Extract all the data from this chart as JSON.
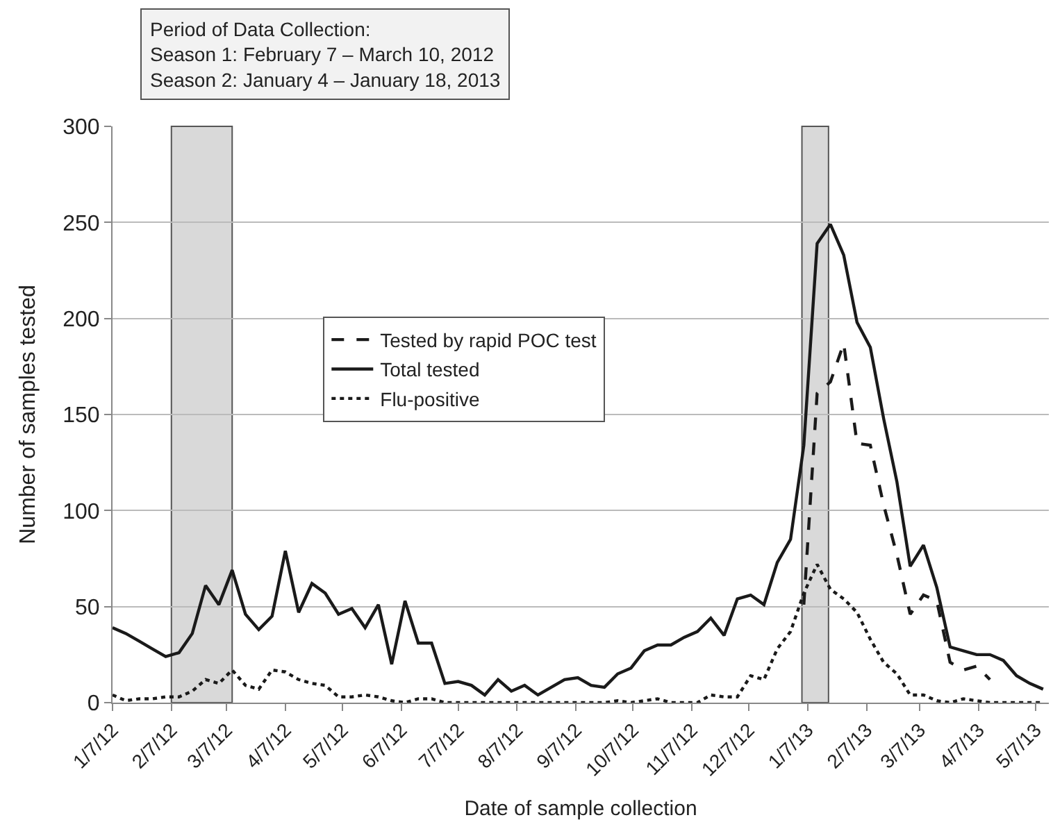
{
  "chart_data": {
    "type": "line",
    "xlabel": "Date of sample collection",
    "ylabel": "Number of samples tested",
    "annotations": [
      "Period of Data Collection:\nSeason 1: February 7 – March 10, 2012\nSeason 2: January 4 – January 18, 2013"
    ],
    "x": [
      "2012-01-07",
      "2012-01-14",
      "2012-01-21",
      "2012-01-28",
      "2012-02-04",
      "2012-02-11",
      "2012-02-18",
      "2012-02-25",
      "2012-03-03",
      "2012-03-10",
      "2012-03-17",
      "2012-03-24",
      "2012-03-31",
      "2012-04-07",
      "2012-04-14",
      "2012-04-21",
      "2012-04-28",
      "2012-05-05",
      "2012-05-12",
      "2012-05-19",
      "2012-05-26",
      "2012-06-02",
      "2012-06-09",
      "2012-06-16",
      "2012-06-23",
      "2012-06-30",
      "2012-07-07",
      "2012-07-14",
      "2012-07-21",
      "2012-07-28",
      "2012-08-04",
      "2012-08-11",
      "2012-08-18",
      "2012-08-25",
      "2012-09-01",
      "2012-09-08",
      "2012-09-15",
      "2012-09-22",
      "2012-09-29",
      "2012-10-06",
      "2012-10-13",
      "2012-10-20",
      "2012-10-27",
      "2012-11-03",
      "2012-11-10",
      "2012-11-17",
      "2012-11-24",
      "2012-12-01",
      "2012-12-08",
      "2012-12-15",
      "2012-12-22",
      "2012-12-29",
      "2013-01-05",
      "2013-01-12",
      "2013-01-19",
      "2013-01-26",
      "2013-02-02",
      "2013-02-09",
      "2013-02-16",
      "2013-02-23",
      "2013-03-02",
      "2013-03-09",
      "2013-03-16",
      "2013-03-23",
      "2013-03-30",
      "2013-04-06",
      "2013-04-13",
      "2013-04-20",
      "2013-04-27",
      "2013-05-04",
      "2013-05-11"
    ],
    "series": [
      {
        "name": "Tested by rapid POC test",
        "color": "#1a1a1a",
        "line_style": "dashed",
        "x": [
          "2013-01-05",
          "2013-01-12",
          "2013-01-19",
          "2013-01-26",
          "2013-02-02",
          "2013-02-09",
          "2013-02-16",
          "2013-02-23",
          "2013-03-02",
          "2013-03-09",
          "2013-03-16",
          "2013-03-23",
          "2013-03-30",
          "2013-04-06",
          "2013-04-13"
        ],
        "values": [
          51,
          161,
          167,
          187,
          135,
          134,
          103,
          77,
          46,
          56,
          53,
          21,
          17,
          19,
          12
        ]
      },
      {
        "name": "Total tested",
        "color": "#1a1a1a",
        "line_style": "solid",
        "values": [
          39,
          36,
          32,
          28,
          24,
          26,
          36,
          61,
          51,
          69,
          46,
          38,
          45,
          79,
          47,
          62,
          57,
          46,
          49,
          39,
          51,
          20,
          53,
          31,
          31,
          10,
          11,
          9,
          4,
          12,
          6,
          9,
          4,
          8,
          12,
          13,
          9,
          8,
          15,
          18,
          27,
          30,
          30,
          34,
          37,
          44,
          35,
          54,
          56,
          51,
          73,
          85,
          134,
          239,
          249,
          233,
          198,
          185,
          148,
          115,
          71,
          82,
          60,
          29,
          27,
          25,
          25,
          22,
          14,
          10,
          7
        ]
      },
      {
        "name": "Flu-positive",
        "color": "#1a1a1a",
        "line_style": "dotted",
        "values": [
          4,
          1,
          2,
          2,
          3,
          3,
          6,
          12,
          10,
          17,
          9,
          7,
          17,
          16,
          12,
          10,
          9,
          3,
          3,
          4,
          3,
          1,
          0,
          2,
          2,
          0,
          0,
          0,
          0,
          0,
          0,
          0,
          0,
          0,
          0,
          0,
          0,
          0,
          1,
          0,
          1,
          2,
          0,
          0,
          0,
          4,
          3,
          3,
          14,
          12,
          28,
          37,
          57,
          72,
          59,
          54,
          47,
          33,
          21,
          15,
          4,
          4,
          1,
          0,
          2,
          1,
          0,
          0,
          0,
          0,
          0
        ]
      }
    ],
    "bands": [
      {
        "axis": "x",
        "from": "2012-02-07",
        "to": "2012-03-10",
        "color": "#d9d9d9"
      },
      {
        "axis": "x",
        "from": "2013-01-04",
        "to": "2013-01-18",
        "color": "#d9d9d9"
      }
    ],
    "xlim": [
      "2012-01-07",
      "2013-05-14"
    ],
    "xticks": [
      {
        "value": "2012-01-07",
        "label": "1/7/12"
      },
      {
        "value": "2012-02-07",
        "label": "2/7/12"
      },
      {
        "value": "2012-03-07",
        "label": "3/7/12"
      },
      {
        "value": "2012-04-07",
        "label": "4/7/12"
      },
      {
        "value": "2012-05-07",
        "label": "5/7/12"
      },
      {
        "value": "2012-06-07",
        "label": "6/7/12"
      },
      {
        "value": "2012-07-07",
        "label": "7/7/12"
      },
      {
        "value": "2012-08-07",
        "label": "8/7/12"
      },
      {
        "value": "2012-09-07",
        "label": "9/7/12"
      },
      {
        "value": "2012-10-07",
        "label": "10/7/12"
      },
      {
        "value": "2012-11-07",
        "label": "11/7/12"
      },
      {
        "value": "2012-12-07",
        "label": "12/7/12"
      },
      {
        "value": "2013-01-07",
        "label": "1/7/13"
      },
      {
        "value": "2013-02-07",
        "label": "2/7/13"
      },
      {
        "value": "2013-03-07",
        "label": "3/7/13"
      },
      {
        "value": "2013-04-07",
        "label": "4/7/13"
      },
      {
        "value": "2013-05-07",
        "label": "5/7/13"
      }
    ],
    "ylim": [
      0,
      300
    ],
    "yticks": [
      0,
      50,
      100,
      150,
      200,
      250,
      300
    ],
    "grid": "y",
    "legend": "center",
    "marker": "none"
  }
}
